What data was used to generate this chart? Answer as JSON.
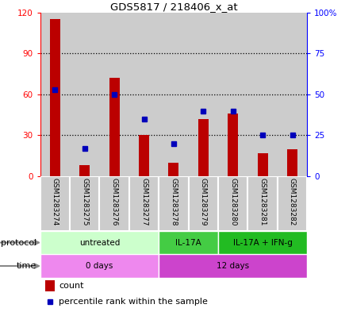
{
  "title": "GDS5817 / 218406_x_at",
  "samples": [
    "GSM1283274",
    "GSM1283275",
    "GSM1283276",
    "GSM1283277",
    "GSM1283278",
    "GSM1283279",
    "GSM1283280",
    "GSM1283281",
    "GSM1283282"
  ],
  "counts": [
    115,
    8,
    72,
    30,
    10,
    42,
    46,
    17,
    20
  ],
  "percentiles": [
    53,
    17,
    50,
    35,
    20,
    40,
    40,
    25,
    25
  ],
  "ylim_left": [
    0,
    120
  ],
  "ylim_right": [
    0,
    100
  ],
  "yticks_left": [
    0,
    30,
    60,
    90,
    120
  ],
  "yticks_right": [
    0,
    25,
    50,
    75,
    100
  ],
  "ytick_labels_left": [
    "0",
    "30",
    "60",
    "90",
    "120"
  ],
  "ytick_labels_right": [
    "0",
    "25",
    "50",
    "75",
    "100%"
  ],
  "bar_color": "#bb0000",
  "dot_color": "#0000bb",
  "protocol_groups": [
    {
      "label": "untreated",
      "start": 0,
      "end": 4,
      "color": "#ccffcc"
    },
    {
      "label": "IL-17A",
      "start": 4,
      "end": 6,
      "color": "#44cc44"
    },
    {
      "label": "IL-17A + IFN-g",
      "start": 6,
      "end": 9,
      "color": "#22bb22"
    }
  ],
  "time_groups": [
    {
      "label": "0 days",
      "start": 0,
      "end": 4,
      "color": "#ee88ee"
    },
    {
      "label": "12 days",
      "start": 4,
      "end": 9,
      "color": "#cc44cc"
    }
  ],
  "sample_bg": "#cccccc",
  "plot_bg": "white"
}
